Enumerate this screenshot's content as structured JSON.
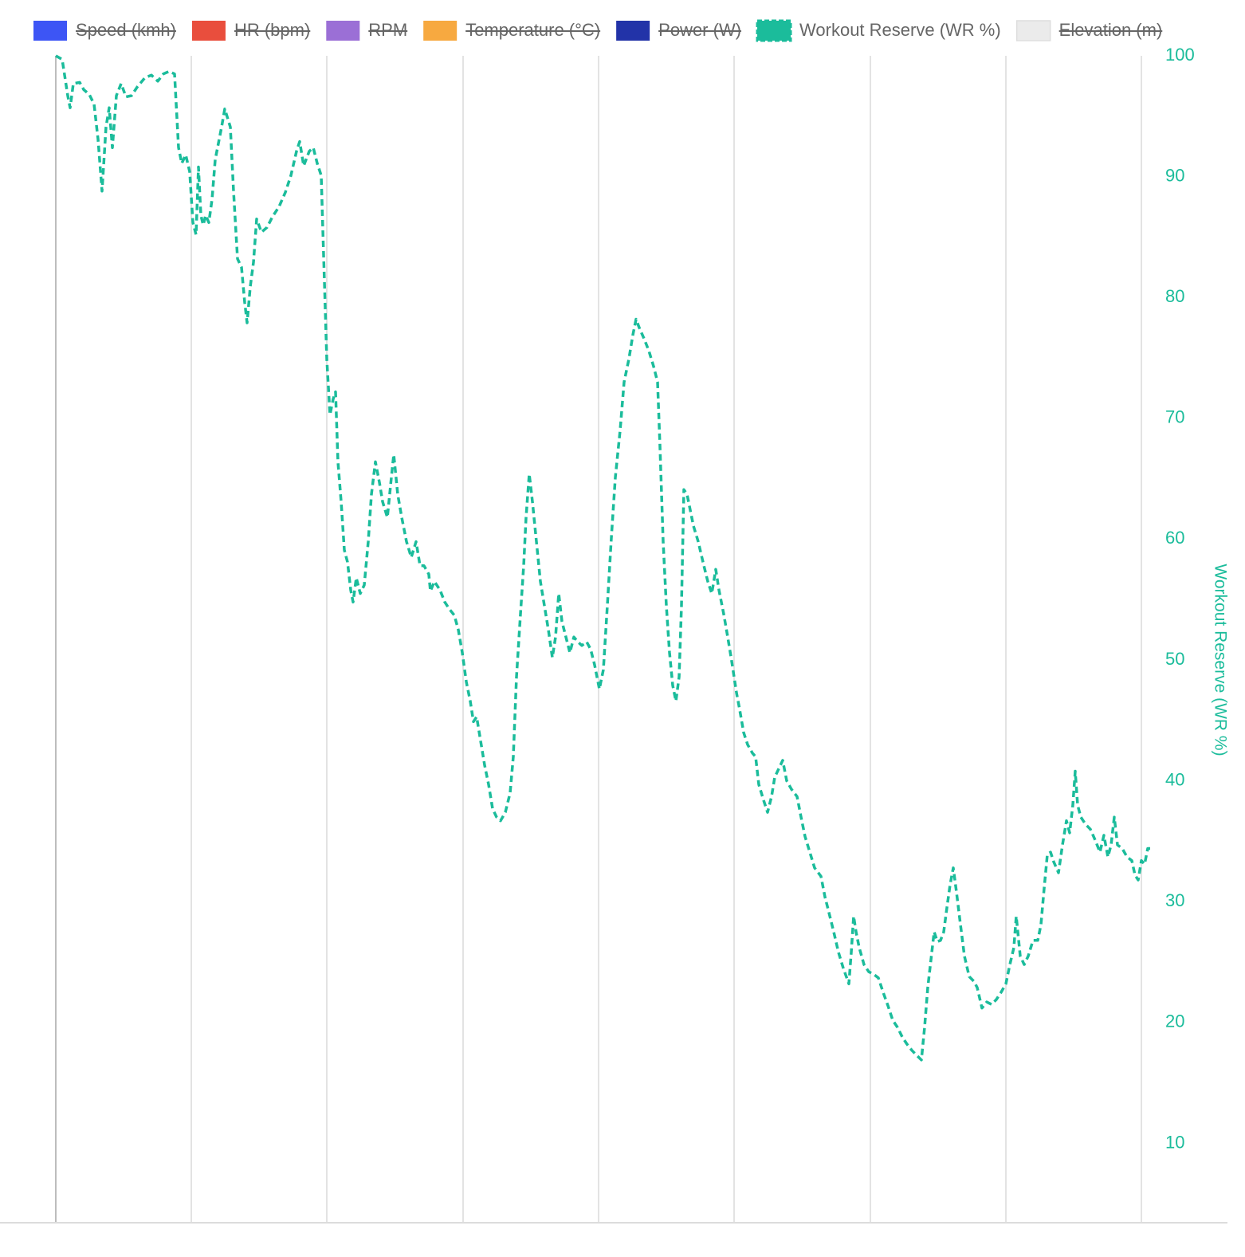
{
  "chart_data": {
    "type": "line",
    "grid": true,
    "legend_position": "top",
    "series": [
      {
        "name": "Speed (kmh)",
        "color": "#3d55f5",
        "hidden": true
      },
      {
        "name": "HR (bpm)",
        "color": "#e94e3d",
        "hidden": true
      },
      {
        "name": "RPM",
        "color": "#9b6fd6",
        "hidden": true
      },
      {
        "name": "Temperature (°C)",
        "color": "#f7a940",
        "hidden": true
      },
      {
        "name": "Power (W)",
        "color": "#2233a8",
        "hidden": true
      },
      {
        "name": "Workout Reserve (WR %)",
        "color": "#1bbc9b",
        "hidden": false,
        "dashed": true,
        "axis": "y2",
        "values": [
          100,
          99.7,
          96.7,
          95.7,
          97.7,
          97.8,
          97.2,
          96.8,
          96.0,
          93.1,
          88.8,
          94.1,
          95.7,
          92.4,
          96.7,
          97.7,
          96.6,
          96.7,
          97.4,
          98.2,
          98.4,
          97.9,
          98.5,
          98.7,
          98.5,
          92.4,
          91.1,
          91.8,
          90.4,
          86.2,
          85.2,
          90.8,
          86.8,
          86.0,
          86.8,
          86.2,
          88.1,
          91.4,
          94.1,
          95.6,
          94.1,
          88.8,
          83.2,
          82.5,
          79.6,
          77.9,
          80.9,
          82.9,
          86.5,
          85.4,
          85.8,
          86.7,
          87.5,
          88.7,
          90.1,
          92.1,
          92.9,
          90.9,
          92.1,
          92.4,
          91.1,
          90.1,
          83.5,
          74.9,
          70.3,
          71.6,
          72.2,
          66.4,
          63.1,
          59.1,
          58.1,
          55.8,
          54.8,
          56.8,
          55.5,
          56.2,
          59.8,
          63.7,
          66.4,
          64.7,
          63.1,
          61.8,
          65.1,
          67.0,
          63.7,
          61.8,
          59.8,
          58.5,
          59.8,
          57.8,
          57.8,
          57.1,
          55.7,
          56.5,
          55.8,
          54.8,
          54.2,
          53.7,
          52.5,
          50.6,
          48.2,
          46.6,
          44.9,
          45.3,
          43.3,
          41.3,
          39.7,
          37.7,
          37.0,
          36.7,
          37.4,
          39.0,
          42.0,
          48.6,
          53.8,
          57.8,
          61.8,
          65.4,
          63.1,
          59.8,
          56.5,
          54.5,
          52.5,
          50.2,
          51.9,
          55.5,
          53.2,
          51.9,
          50.6,
          51.9,
          51.5,
          51.2,
          51.5,
          50.9,
          49.6,
          47.6,
          49.2,
          54.5,
          60.1,
          65.1,
          69.0,
          73.0,
          74.9,
          76.9,
          78.2,
          77.5,
          76.6,
          75.6,
          74.3,
          73.0,
          67.7,
          59.8,
          54.5,
          50.6,
          47.9,
          46.6,
          48.6,
          54.5,
          64.1,
          63.7,
          62.4,
          61.1,
          59.8,
          58.1,
          56.5,
          55.5,
          57.5,
          55.8,
          53.8,
          51.9,
          49.9,
          47.3,
          45.9,
          44.0,
          43.0,
          42.3,
          42.0,
          39.7,
          38.4,
          37.4,
          38.7,
          40.3,
          41.0,
          41.7,
          40.0,
          39.3,
          38.7,
          37.0,
          35.4,
          34.1,
          32.8,
          32.1,
          30.4,
          29.1,
          27.5,
          25.8,
          24.5,
          23.2,
          25.8,
          28.8,
          27.5,
          26.2,
          24.8,
          24.2,
          24.0,
          23.7,
          22.5,
          21.4,
          20.2,
          19.6,
          18.8,
          18.2,
          17.7,
          17.3,
          16.9,
          19.6,
          22.9,
          25.2,
          27.5,
          26.7,
          26.8,
          27.5,
          29.5,
          31.4,
          32.8,
          30.8,
          28.1,
          25.5,
          23.8,
          23.4,
          22.9,
          21.2,
          21.7,
          21.5,
          21.9,
          22.5,
          23.2,
          24.8,
          26.2,
          28.8,
          25.5,
          24.8,
          25.5,
          26.8,
          26.8,
          28.1,
          31.1,
          33.9,
          34.1,
          33.3,
          32.4,
          34.7,
          36.7,
          35.7,
          38.0,
          40.8,
          38.0,
          37.0,
          36.4,
          36.0,
          35.1,
          34.1,
          35.5,
          33.7,
          34.7,
          37.0,
          34.7,
          34.4,
          33.7,
          33.4,
          32.2,
          31.8,
          33.4,
          33.1,
          34.4,
          34.4
        ]
      },
      {
        "name": "Elevation (m)",
        "color": "#ebebeb",
        "hidden": true
      }
    ],
    "x": [
      0,
      8,
      15,
      18,
      22,
      30,
      35,
      42,
      48,
      53,
      58,
      63,
      67,
      71,
      76,
      82,
      88,
      95,
      102,
      112,
      120,
      128,
      135,
      142,
      149,
      154,
      158,
      163,
      168,
      172,
      176,
      179,
      182,
      185,
      188,
      192,
      196,
      200,
      208,
      212,
      219,
      223,
      228,
      233,
      237,
      240,
      244,
      248,
      252,
      258,
      265,
      272,
      280,
      288,
      295,
      302,
      306,
      311,
      318,
      323,
      328,
      333,
      336,
      340,
      344,
      348,
      351,
      354,
      358,
      362,
      366,
      370,
      373,
      377,
      382,
      387,
      392,
      396,
      401,
      406,
      410,
      416,
      421,
      424,
      429,
      434,
      440,
      446,
      452,
      457,
      462,
      468,
      470,
      475,
      482,
      488,
      494,
      500,
      505,
      510,
      515,
      520,
      524,
      528,
      533,
      538,
      543,
      548,
      553,
      558,
      564,
      570,
      574,
      578,
      583,
      587,
      590,
      594,
      598,
      603,
      608,
      613,
      618,
      623,
      627,
      631,
      635,
      640,
      645,
      650,
      655,
      660,
      666,
      671,
      676,
      682,
      687,
      692,
      697,
      702,
      708,
      713,
      719,
      724,
      728,
      732,
      738,
      744,
      750,
      755,
      758,
      762,
      766,
      770,
      774,
      778,
      782,
      785,
      788,
      792,
      796,
      800,
      806,
      812,
      818,
      823,
      828,
      832,
      838,
      843,
      848,
      854,
      858,
      863,
      868,
      874,
      878,
      882,
      888,
      893,
      898,
      902,
      907,
      912,
      917,
      923,
      930,
      935,
      940,
      946,
      952,
      960,
      965,
      970,
      976,
      982,
      988,
      995,
      998,
      1001,
      1004,
      1008,
      1014,
      1020,
      1026,
      1032,
      1038,
      1044,
      1050,
      1056,
      1062,
      1068,
      1074,
      1080,
      1086,
      1090,
      1094,
      1098,
      1102,
      1106,
      1110,
      1114,
      1118,
      1122,
      1126,
      1130,
      1135,
      1140,
      1146,
      1152,
      1156,
      1162,
      1168,
      1174,
      1180,
      1186,
      1192,
      1197,
      1202,
      1205,
      1210,
      1215,
      1220,
      1226,
      1232,
      1236,
      1240,
      1244,
      1248,
      1252,
      1258,
      1263,
      1268,
      1272,
      1276,
      1279,
      1282,
      1286,
      1292,
      1298,
      1304,
      1310,
      1315,
      1320,
      1324,
      1328,
      1332,
      1338,
      1344,
      1350,
      1354,
      1358,
      1362,
      1366,
      1370,
      1373
    ],
    "xlim": [
      0,
      1373
    ],
    "xticks": [
      0,
      170,
      340,
      511,
      681,
      851,
      1022,
      1192,
      1362
    ],
    "show_xtick_labels": false,
    "y2label": "Workout Reserve (WR %)",
    "y2lim": [
      3.5,
      100
    ],
    "y2ticks": [
      10,
      20,
      30,
      40,
      50,
      60,
      70,
      80,
      90,
      100
    ]
  }
}
